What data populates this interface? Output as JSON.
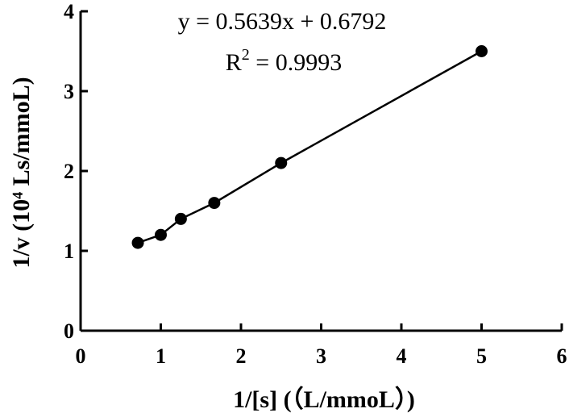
{
  "chart_data": {
    "type": "scatter",
    "x": [
      0.714,
      1.0,
      1.25,
      1.667,
      2.5,
      5.0
    ],
    "y": [
      1.1,
      1.2,
      1.4,
      1.6,
      2.1,
      3.5
    ],
    "xlim": [
      0,
      6
    ],
    "ylim": [
      0,
      4
    ],
    "xticks": [
      "0",
      "1",
      "2",
      "3",
      "4",
      "5",
      "6"
    ],
    "yticks": [
      "0",
      "1",
      "2",
      "3",
      "4"
    ],
    "xlabel": "1/[s] (（L/mmoL）)",
    "ylabel": "1/v (10⁴ Ls/mmoL)",
    "grid": false,
    "connected": true,
    "fit": {
      "slope": 0.5639,
      "intercept": 0.6792
    },
    "annotations": {
      "equation": "y = 0.5639x + 0.6792",
      "r2_prefix": "R",
      "r2_sup": "2",
      "r2_value": " = 0.9993"
    }
  }
}
